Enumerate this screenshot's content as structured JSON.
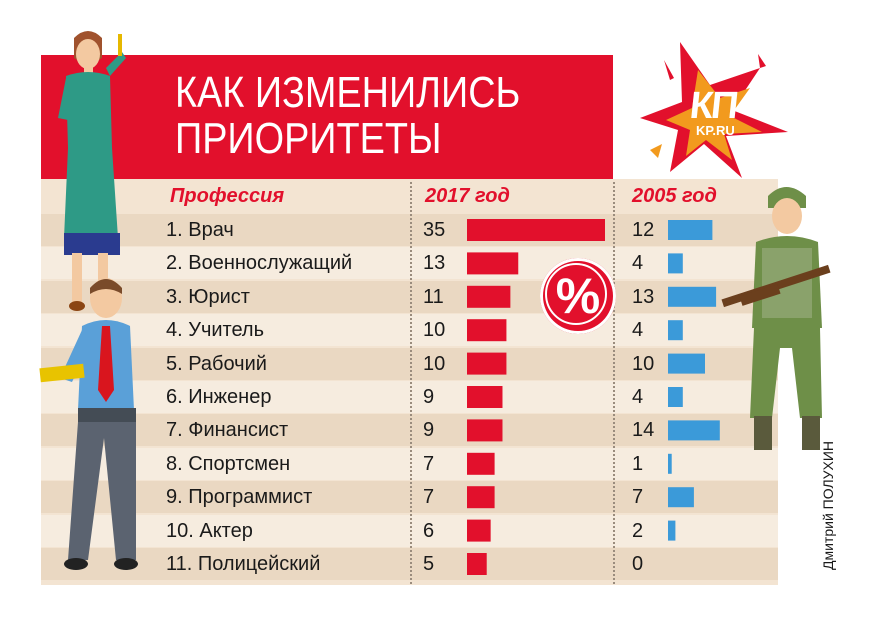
{
  "title": {
    "line1": "КАК ИЗМЕНИЛИСЬ",
    "line2": "ПРИОРИТЕТЫ"
  },
  "logo": {
    "main": "КП",
    "sub": "KP.RU"
  },
  "badge": "%",
  "credit": "Дмитрий ПОЛУХИН",
  "colors": {
    "red": "#e2102c",
    "blue": "#3b9ad9",
    "bg_light": "#f6ecdf",
    "bg_dark": "#ead8c2"
  },
  "chart_data": {
    "type": "bar",
    "headers": {
      "profession": "Профессия",
      "year_2017": "2017 год",
      "year_2005": "2005 год"
    },
    "categories": [
      "1. Врач",
      "2. Военнослужащий",
      "3. Юрист",
      "4. Учитель",
      "5. Рабочий",
      "6. Инженер",
      "7. Финансист",
      "8. Спортсмен",
      "9. Программист",
      "10. Актер",
      "11. Полицейский"
    ],
    "series": [
      {
        "name": "2017 год",
        "color": "#e2102c",
        "values": [
          35,
          13,
          11,
          10,
          10,
          9,
          9,
          7,
          7,
          6,
          5
        ],
        "labels": [
          "35",
          "13",
          "11",
          "10",
          "10",
          "9",
          "9",
          "7",
          "7",
          "6",
          "5"
        ]
      },
      {
        "name": "2005 год",
        "color": "#3b9ad9",
        "values": [
          12,
          4,
          13,
          4,
          10,
          4,
          14,
          1,
          7,
          2,
          0
        ],
        "labels": [
          "12",
          "4",
          "13",
          "4",
          "10",
          "4",
          "14",
          "1",
          "7",
          "2",
          "0"
        ]
      }
    ]
  }
}
